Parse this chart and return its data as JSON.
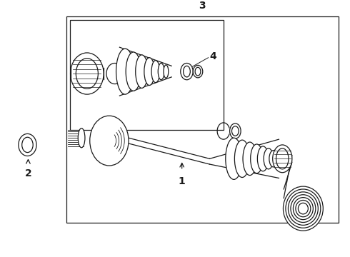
{
  "bg_color": "#ffffff",
  "line_color": "#1a1a1a",
  "line_width": 0.9,
  "fig_width": 4.9,
  "fig_height": 3.6,
  "dpi": 100,
  "label_1": "1",
  "label_2": "2",
  "label_3": "3",
  "label_4": "4",
  "label_fontsize": 9,
  "label_fontweight": "bold"
}
